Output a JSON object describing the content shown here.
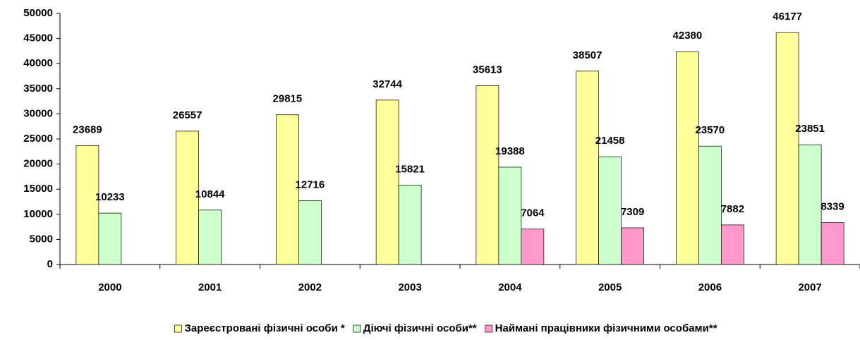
{
  "chart_data": {
    "type": "bar",
    "categories": [
      "2000",
      "2001",
      "2002",
      "2003",
      "2004",
      "2005",
      "2006",
      "2007"
    ],
    "series": [
      {
        "name": "Зареєстровані фізичні особи *",
        "color": "#ffff99",
        "values": [
          23689,
          26557,
          29815,
          32744,
          35613,
          38507,
          42380,
          46177
        ]
      },
      {
        "name": "Діючі фізичні особи**",
        "color": "#ccffcc",
        "values": [
          10233,
          10844,
          12716,
          15821,
          19388,
          21458,
          23570,
          23851
        ]
      },
      {
        "name": "Наймані працівники фізичними особами**",
        "color": "#ff99cc",
        "values": [
          null,
          null,
          null,
          null,
          7064,
          7309,
          7882,
          8339
        ]
      }
    ],
    "ylim": [
      0,
      50000
    ],
    "yticks": [
      0,
      5000,
      10000,
      15000,
      20000,
      25000,
      30000,
      35000,
      40000,
      45000,
      50000
    ],
    "grid": false,
    "legend": "bottom"
  }
}
